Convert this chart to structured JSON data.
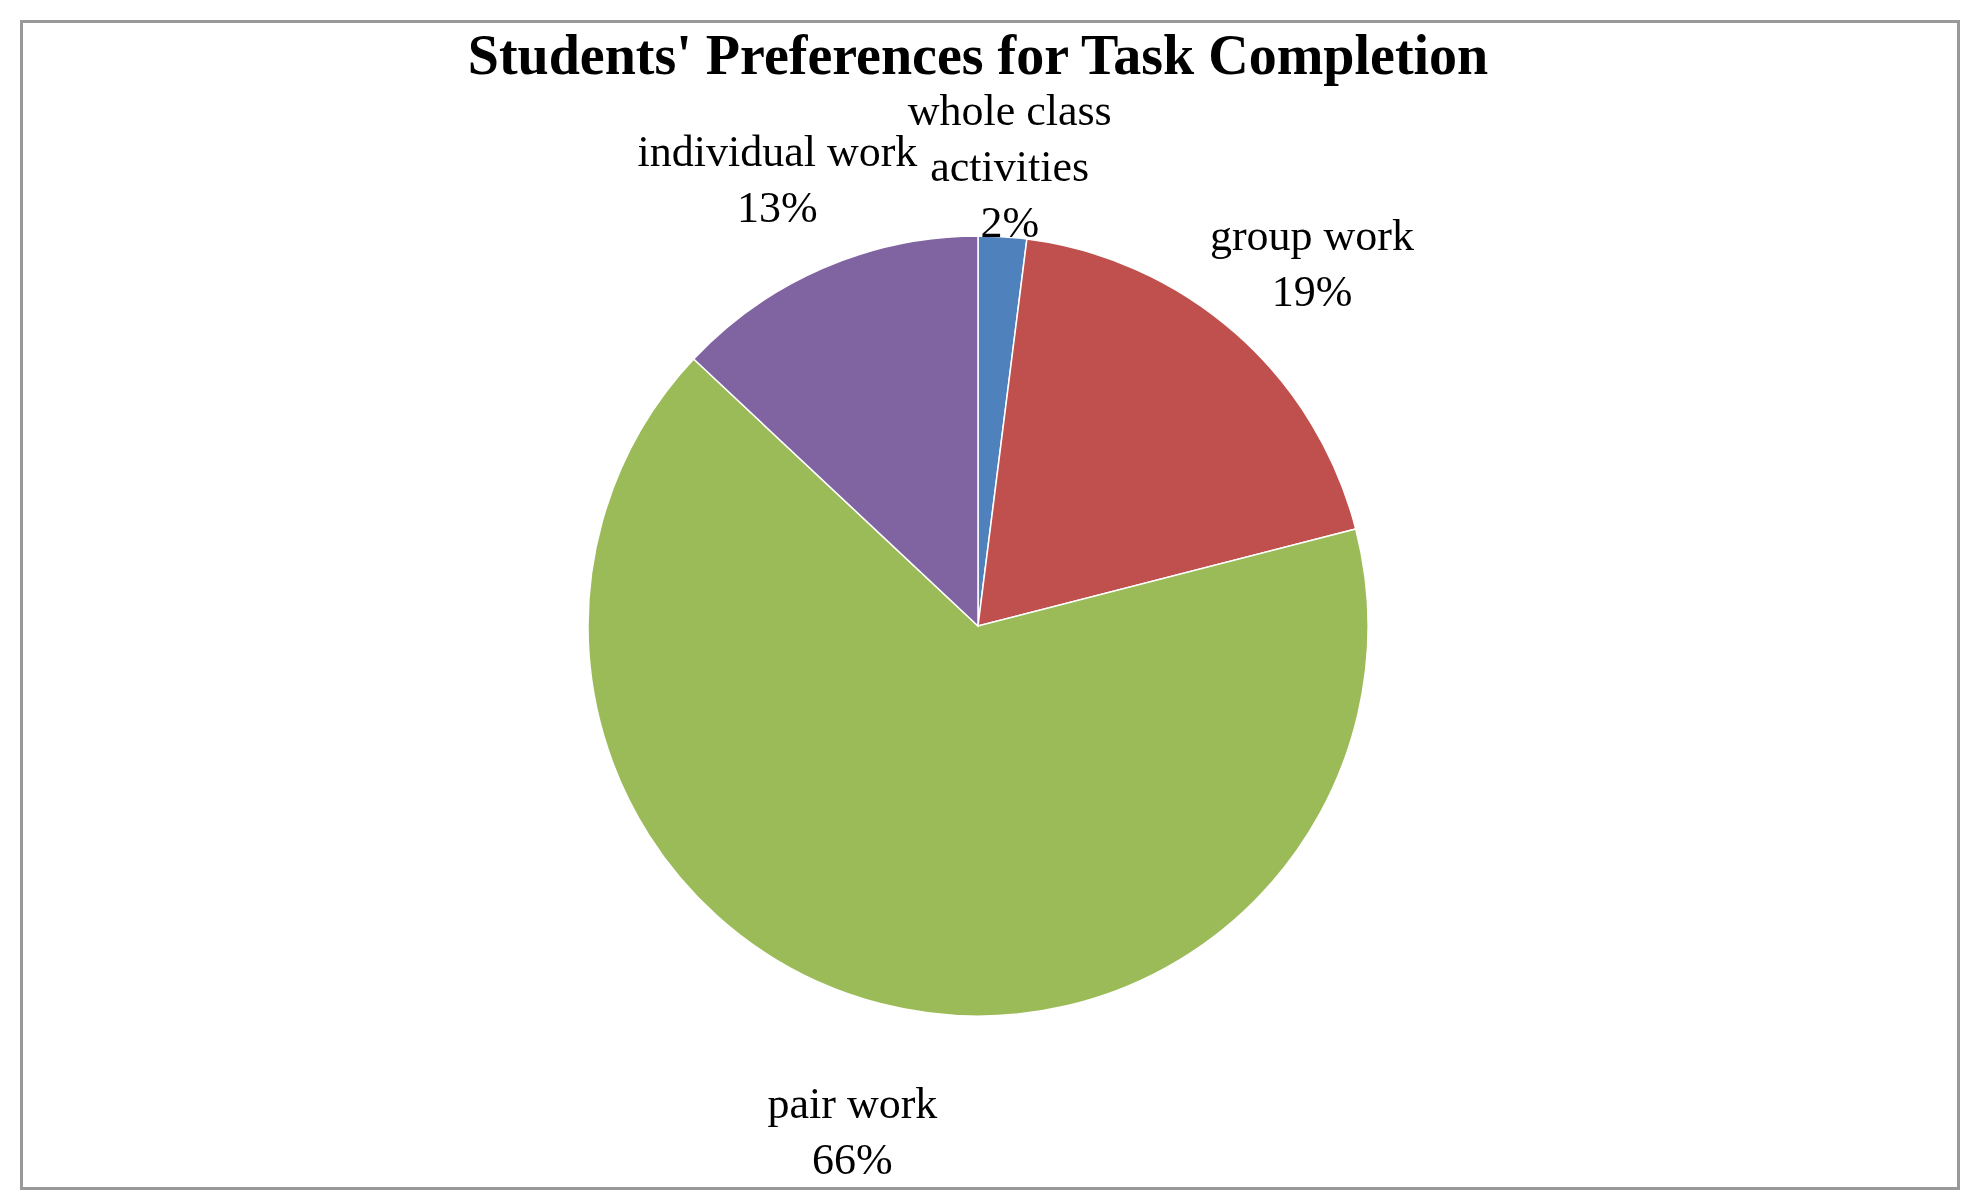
{
  "chart_data": {
    "type": "pie",
    "title": "Students' Preferences for Task Completion",
    "categories": [
      "whole class activities",
      "group work",
      "pair work",
      "individual work"
    ],
    "values": [
      2,
      19,
      66,
      13
    ],
    "value_labels": [
      "2%",
      "19%",
      "66%",
      "13%"
    ],
    "colors": [
      "#4f81bd",
      "#c0504d",
      "#9bbb59",
      "#8064a2"
    ],
    "legend": false
  }
}
